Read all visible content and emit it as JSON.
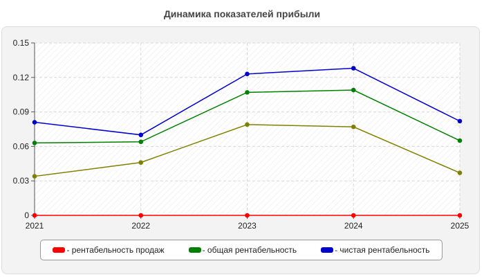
{
  "chart_data": {
    "type": "line",
    "title": "Динамика показателей прибыли",
    "xlabel": "",
    "ylabel": "",
    "categories": [
      "2021",
      "2022",
      "2023",
      "2024",
      "2025"
    ],
    "ylim": [
      0,
      0.15
    ],
    "yticks": [
      "0",
      "0.03",
      "0.06",
      "0.09",
      "0.12",
      "0.15"
    ],
    "grid": true,
    "legend_position": "bottom",
    "series": [
      {
        "name": "- рентабельность продаж",
        "color": "#ff0000",
        "values": [
          0,
          0,
          0,
          0,
          0
        ]
      },
      {
        "name": "- общая рентабельность",
        "color": "#008000",
        "values": [
          0.063,
          0.064,
          0.107,
          0.109,
          0.065
        ]
      },
      {
        "name": "- чистая рентабельность",
        "color": "#0000cc",
        "values": [
          0.081,
          0.07,
          0.123,
          0.128,
          0.082
        ]
      },
      {
        "name": "",
        "color": "#808000",
        "values": [
          0.034,
          0.046,
          0.079,
          0.077,
          0.037
        ]
      }
    ]
  }
}
